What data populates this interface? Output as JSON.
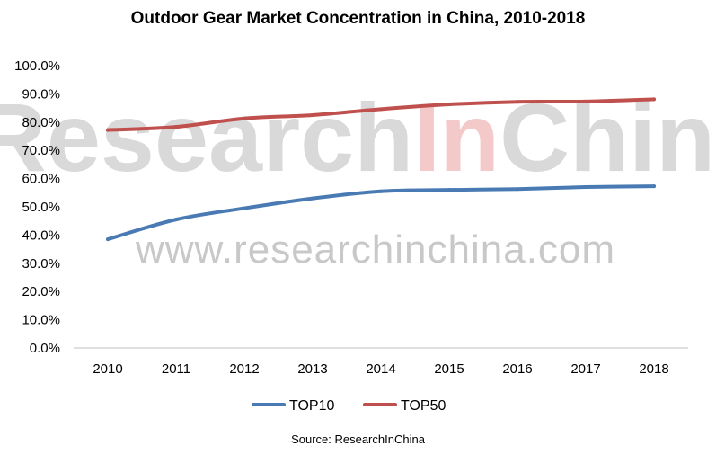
{
  "chart_data": {
    "type": "line",
    "title": "Outdoor Gear Market Concentration in China, 2010-2018",
    "categories": [
      "2010",
      "2011",
      "2012",
      "2013",
      "2014",
      "2015",
      "2016",
      "2017",
      "2018"
    ],
    "series": [
      {
        "name": "TOP10",
        "values": [
          38.5,
          45.5,
          49.5,
          53.0,
          55.5,
          56.0,
          56.3,
          57.0,
          57.3
        ],
        "color": "#4a7ab4"
      },
      {
        "name": "TOP50",
        "values": [
          77.2,
          78.3,
          81.3,
          82.5,
          84.6,
          86.3,
          87.2,
          87.3,
          88.1
        ],
        "color": "#c0504d"
      }
    ],
    "yticks": [
      "0.0%",
      "10.0%",
      "20.0%",
      "30.0%",
      "40.0%",
      "50.0%",
      "60.0%",
      "70.0%",
      "80.0%",
      "90.0%",
      "100.0%"
    ],
    "ylim": [
      0,
      100
    ],
    "grid": false,
    "legend": "bottom-center",
    "source": "Source: ResearchInChina",
    "watermark": {
      "brand_parts": [
        "Research",
        "In",
        "China"
      ],
      "url": "www.researchinchina.com"
    }
  }
}
